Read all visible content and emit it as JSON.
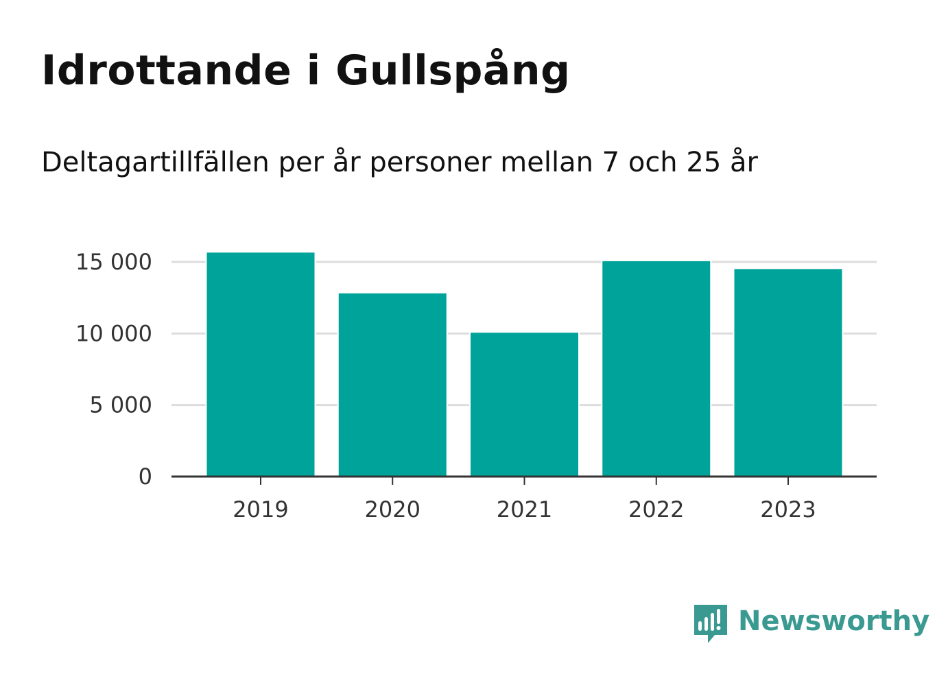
{
  "title": "Idrottande i Gullspång",
  "subtitle": "Deltagartillfällen per år personer mellan 7 och 25 år",
  "brand": {
    "name": "Newsworthy",
    "icon": "bar-chart-speech-bubble-icon",
    "color": "#3a9a92"
  },
  "chart_data": {
    "type": "bar",
    "categories": [
      "2019",
      "2020",
      "2021",
      "2022",
      "2023"
    ],
    "values": [
      15700,
      12850,
      10100,
      15100,
      14550
    ],
    "ylim": [
      0,
      15000
    ],
    "yticks": [
      0,
      5000,
      10000,
      15000
    ],
    "ytick_labels": [
      "0",
      "5 000",
      "10 000",
      "15 000"
    ],
    "grid": true,
    "legend": "none",
    "bar_color": "#00a39a",
    "grid_color": "#dddddd",
    "axis_color": "#333333"
  }
}
